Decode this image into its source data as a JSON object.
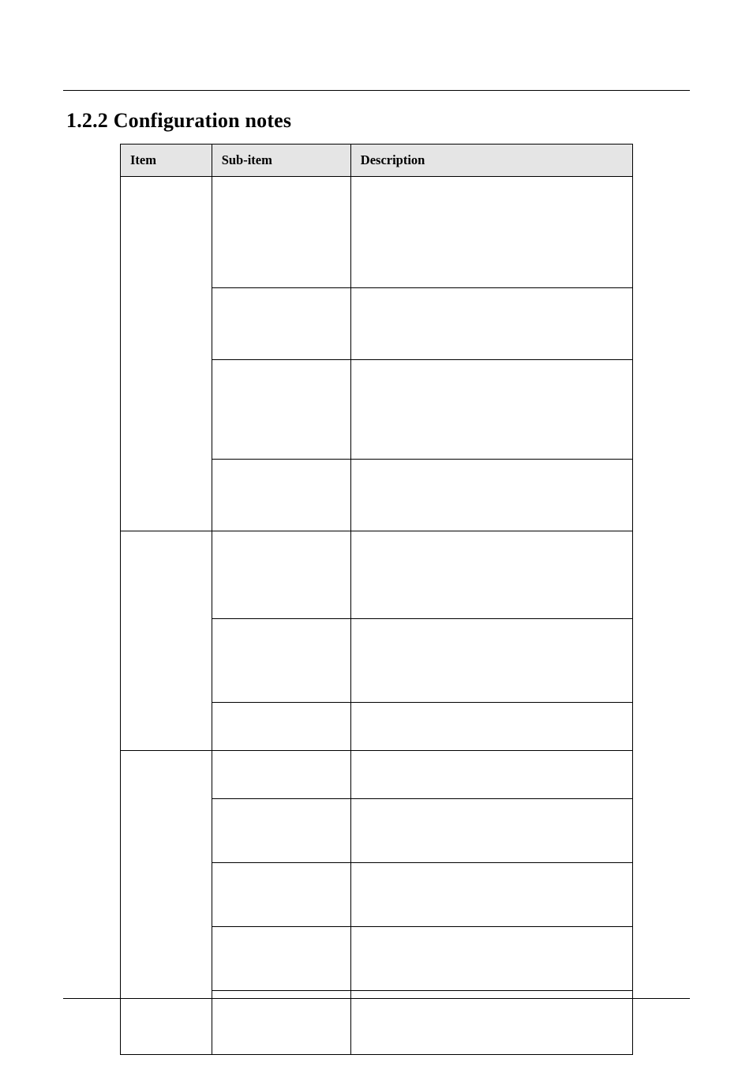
{
  "section_number": "1.2.2",
  "section_title": "Configuration notes",
  "columns": {
    "item": "Item",
    "sub_item": "Sub-item",
    "description": "Description"
  },
  "colors": {
    "header_bg": "#e5e5e5",
    "border": "#000000",
    "background": "#ffffff",
    "text": "#000000"
  },
  "table": {
    "groups": [
      {
        "item": "",
        "rows": [
          {
            "sub_item": "",
            "description": "",
            "height": "h-xtall"
          },
          {
            "sub_item": "",
            "description": "",
            "height": "h-med2"
          },
          {
            "sub_item": "",
            "description": "",
            "height": "h-tall3"
          },
          {
            "sub_item": "",
            "description": "",
            "height": "h-med2"
          }
        ]
      },
      {
        "item": "",
        "rows": [
          {
            "sub_item": "",
            "description": "",
            "height": "h-tall2"
          },
          {
            "sub_item": "",
            "description": "",
            "height": "h-tall"
          },
          {
            "sub_item": "",
            "description": "",
            "height": "h-short"
          }
        ]
      },
      {
        "item": "",
        "rows": [
          {
            "sub_item": "",
            "description": "",
            "height": "h-short"
          },
          {
            "sub_item": "",
            "description": "",
            "height": "h-med"
          },
          {
            "sub_item": "",
            "description": "",
            "height": "h-med"
          },
          {
            "sub_item": "",
            "description": "",
            "height": "h-med"
          },
          {
            "sub_item": "",
            "description": "",
            "height": "h-med"
          }
        ]
      }
    ]
  }
}
